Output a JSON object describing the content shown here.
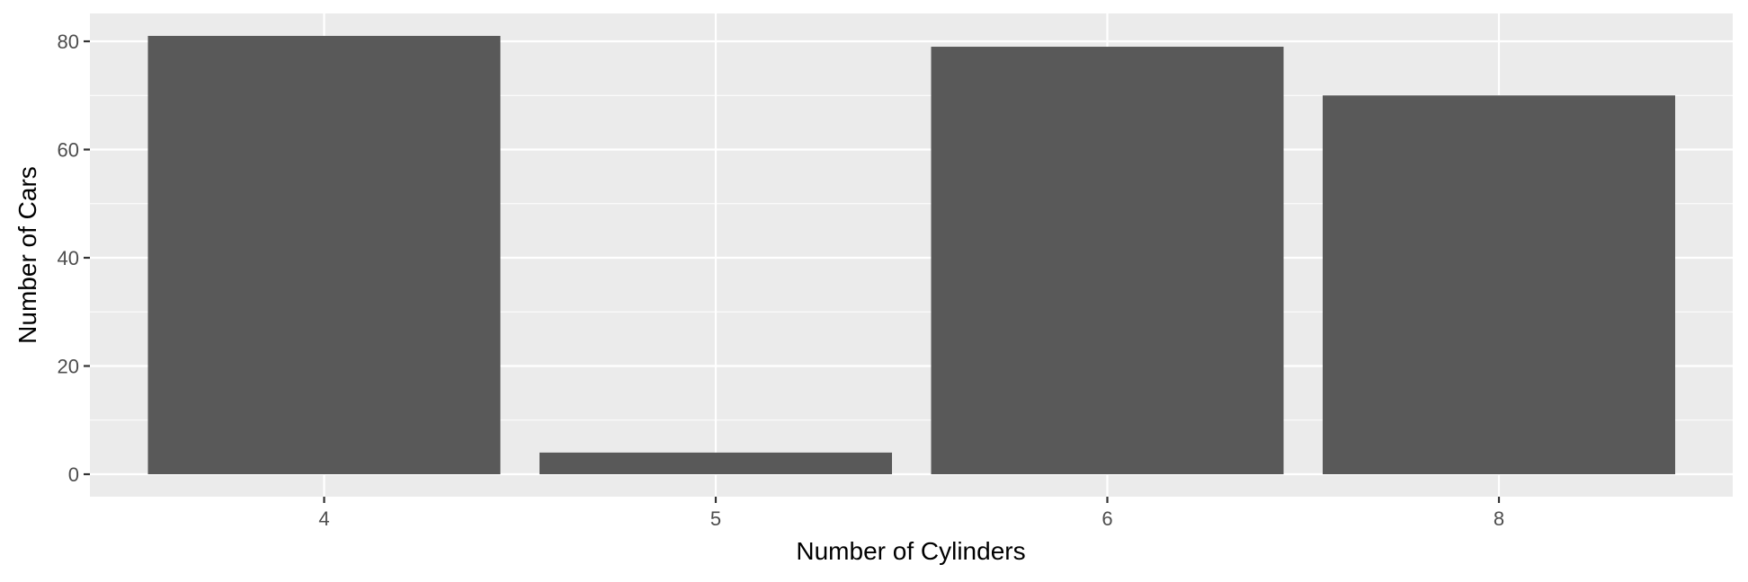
{
  "chart_data": {
    "type": "bar",
    "categories": [
      "4",
      "5",
      "6",
      "8"
    ],
    "values": [
      81,
      4,
      79,
      70
    ],
    "xlabel": "Number of Cylinders",
    "ylabel": "Number of Cars",
    "ylim": [
      0,
      85
    ],
    "yticks": [
      0,
      20,
      40,
      60,
      80
    ],
    "grid": true,
    "legend": "none",
    "colors": {
      "bar": "#595959",
      "panel": "#ebebeb",
      "grid": "#ffffff"
    }
  }
}
